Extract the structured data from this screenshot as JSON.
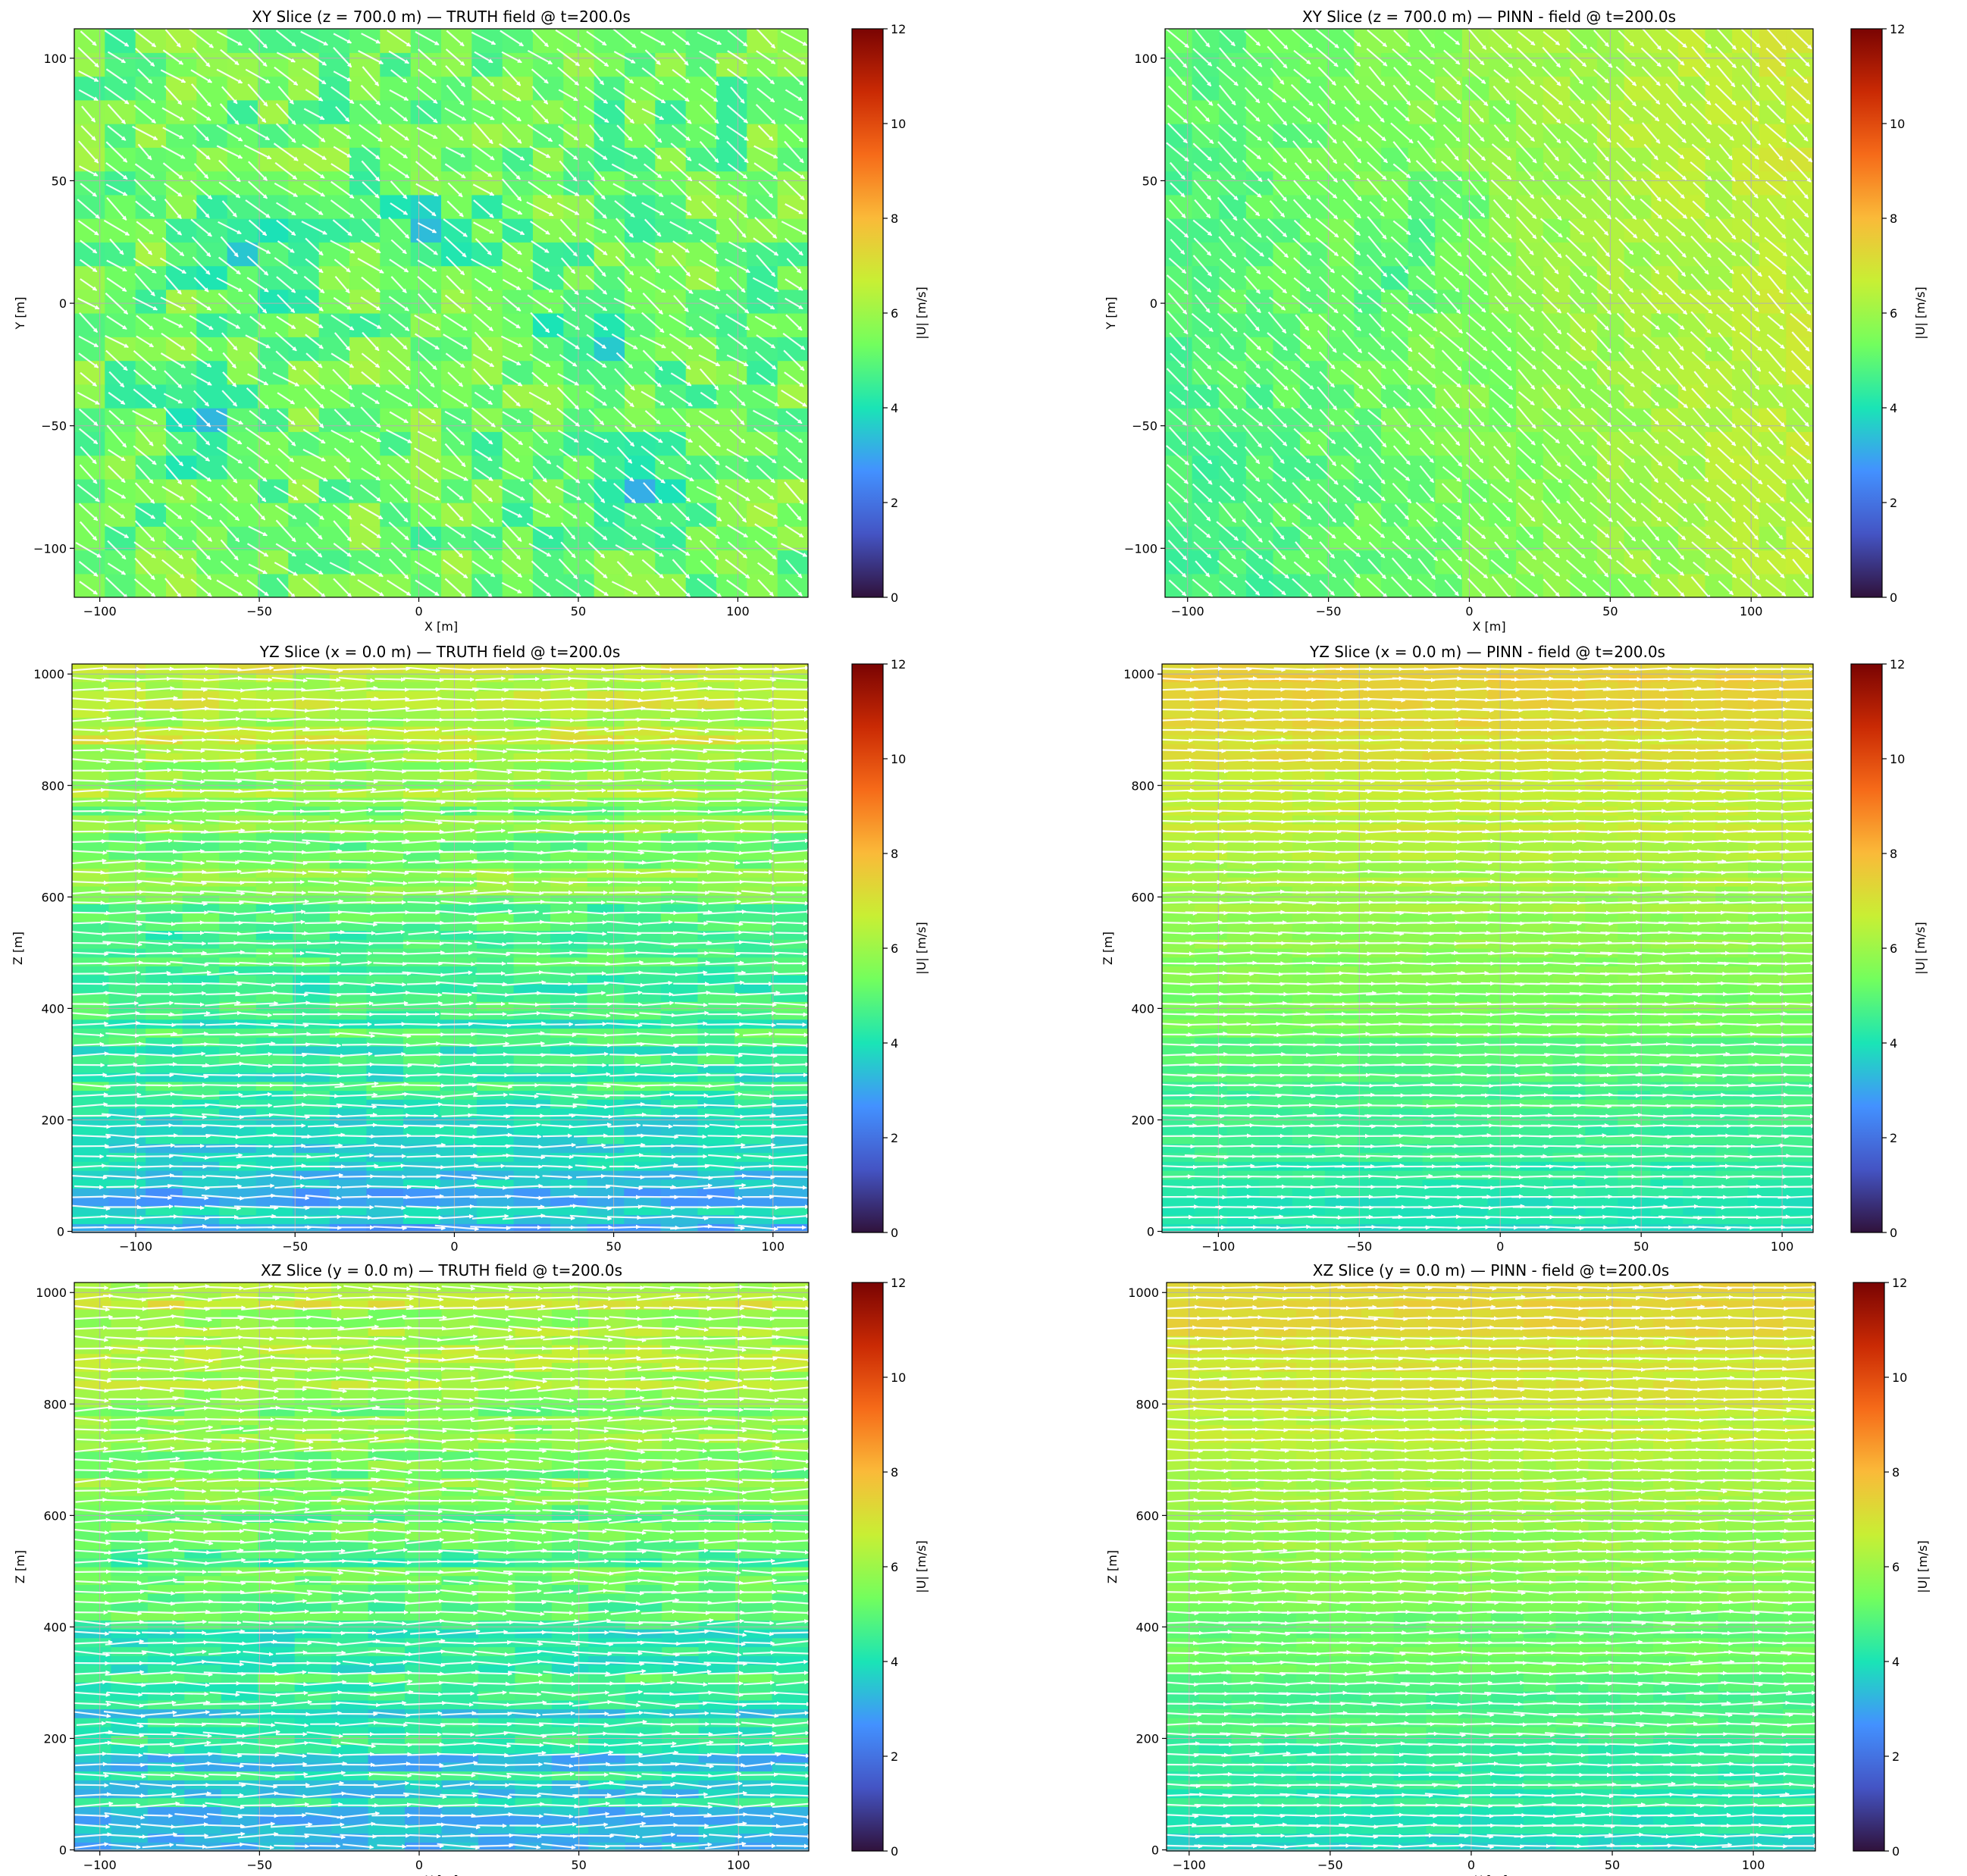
{
  "colorbar": {
    "label": "|U| [m/s]",
    "range": [
      0,
      12
    ],
    "ticks": [
      0,
      2,
      4,
      6,
      8,
      10,
      12
    ],
    "colormap": "turbo",
    "stops": [
      "#30123b",
      "#4454c4",
      "#4391ff",
      "#1ae4b6",
      "#72fe5e",
      "#c8ef34",
      "#faba39",
      "#f66b19",
      "#ca2a04",
      "#7a0403"
    ]
  },
  "chart_data": [
    {
      "type": "heatmap",
      "id": "xy-truth",
      "title": "XY Slice (z = 700.0 m) — TRUTH field @ t=200.0s",
      "xlabel": "X [m]",
      "ylabel": "Y [m]",
      "xlim": [
        -108,
        122
      ],
      "ylim": [
        -120,
        112
      ],
      "xticks": [
        -100,
        -50,
        0,
        50,
        100
      ],
      "yticks": [
        -100,
        -50,
        0,
        50,
        100
      ],
      "xtick_labels": [
        "−100",
        "−50",
        "0",
        "50",
        "100"
      ],
      "ytick_labels": [
        "−100",
        "−50",
        "0",
        "50",
        "100"
      ],
      "grid": true,
      "field": {
        "base_speed": 5.3,
        "noise": 0.9,
        "trend_x": 0,
        "trend_y": 0,
        "low_spots": [
          [
            -48,
            14
          ],
          [
            4,
            26
          ],
          [
            55,
            -15
          ],
          [
            70,
            -78
          ],
          [
            -65,
            -48
          ]
        ],
        "spot_depth": 1.3
      },
      "vectors": {
        "mean_direction_deg": -38,
        "spread_deg": 12
      }
    },
    {
      "type": "heatmap",
      "id": "xy-pinn",
      "title": "XY Slice (z = 700.0 m) — PINN  -  field @ t=200.0s",
      "xlabel": "X [m]",
      "ylabel": "Y [m]",
      "xlim": [
        -108,
        122
      ],
      "ylim": [
        -120,
        112
      ],
      "xticks": [
        -100,
        -50,
        0,
        50,
        100
      ],
      "yticks": [
        -100,
        -50,
        0,
        50,
        100
      ],
      "xtick_labels": [
        "−100",
        "−50",
        "0",
        "50",
        "100"
      ],
      "ytick_labels": [
        "−100",
        "−50",
        "0",
        "50",
        "100"
      ],
      "grid": true,
      "field": {
        "base_speed": 5.6,
        "noise": 0.35,
        "trend_x": 0.9,
        "trend_y": 0.2,
        "low_spots": [
          [
            -20,
            10
          ],
          [
            -10,
            40
          ]
        ],
        "spot_depth": 0.6
      },
      "vectors": {
        "mean_direction_deg": -45,
        "spread_deg": 6
      }
    },
    {
      "type": "heatmap",
      "id": "yz-truth",
      "title": "YZ Slice (x = 0.0 m) — TRUTH field @ t=200.0s",
      "xlabel": "",
      "ylabel": "Z [m]",
      "xlim": [
        -120,
        111
      ],
      "ylim": [
        -2,
        1018
      ],
      "xticks": [
        -100,
        -50,
        0,
        50,
        100
      ],
      "yticks": [
        0,
        200,
        400,
        600,
        800,
        1000
      ],
      "xtick_labels": [
        "−100",
        "−50",
        "0",
        "50",
        "100"
      ],
      "ytick_labels": [
        "0",
        "200",
        "400",
        "600",
        "800",
        "1000"
      ],
      "grid": true,
      "field": {
        "base_speed": 3.4,
        "height_gain": 0.0032,
        "noise": 0.85,
        "layered": true
      },
      "vectors": {
        "mean_direction_deg": 0,
        "spread_deg": 5
      }
    },
    {
      "type": "heatmap",
      "id": "yz-pinn",
      "title": "YZ Slice (x = 0.0 m) — PINN  -  field @ t=200.0s",
      "xlabel": "",
      "ylabel": "Z [m]",
      "xlim": [
        -120,
        111
      ],
      "ylim": [
        -2,
        1018
      ],
      "xticks": [
        -100,
        -50,
        0,
        50,
        100
      ],
      "yticks": [
        0,
        200,
        400,
        600,
        800,
        1000
      ],
      "xtick_labels": [
        "−100",
        "−50",
        "0",
        "50",
        "100"
      ],
      "ytick_labels": [
        "0",
        "200",
        "400",
        "600",
        "800",
        "1000"
      ],
      "grid": true,
      "field": {
        "base_speed": 3.9,
        "height_gain": 0.0036,
        "noise": 0.35,
        "layered": true
      },
      "vectors": {
        "mean_direction_deg": 0,
        "spread_deg": 3
      }
    },
    {
      "type": "heatmap",
      "id": "xz-truth",
      "title": "XZ Slice (y = 0.0 m) — TRUTH field @ t=200.0s",
      "xlabel": "X [m]",
      "ylabel": "Z [m]",
      "xlim": [
        -108,
        122
      ],
      "ylim": [
        -2,
        1018
      ],
      "xticks": [
        -100,
        -50,
        0,
        50,
        100
      ],
      "yticks": [
        0,
        200,
        400,
        600,
        800,
        1000
      ],
      "xtick_labels": [
        "−100",
        "−50",
        "0",
        "50",
        "100"
      ],
      "ytick_labels": [
        "0",
        "200",
        "400",
        "600",
        "800",
        "1000"
      ],
      "grid": true,
      "field": {
        "base_speed": 3.4,
        "height_gain": 0.0031,
        "noise": 0.85,
        "layered": true
      },
      "vectors": {
        "mean_direction_deg": 0,
        "spread_deg": 7
      }
    },
    {
      "type": "heatmap",
      "id": "xz-pinn",
      "title": "XZ Slice (y = 0.0 m) — PINN  -  field @ t=200.0s",
      "xlabel": "X [m]",
      "ylabel": "Z [m]",
      "xlim": [
        -108,
        122
      ],
      "ylim": [
        -2,
        1018
      ],
      "xticks": [
        -100,
        -50,
        0,
        50,
        100
      ],
      "yticks": [
        0,
        200,
        400,
        600,
        800,
        1000
      ],
      "xtick_labels": [
        "−100",
        "−50",
        "0",
        "50",
        "100"
      ],
      "ytick_labels": [
        "0",
        "200",
        "400",
        "600",
        "800",
        "1000"
      ],
      "grid": true,
      "field": {
        "base_speed": 3.9,
        "height_gain": 0.0035,
        "noise": 0.35,
        "layered": true
      },
      "vectors": {
        "mean_direction_deg": 0,
        "spread_deg": 4
      }
    }
  ]
}
